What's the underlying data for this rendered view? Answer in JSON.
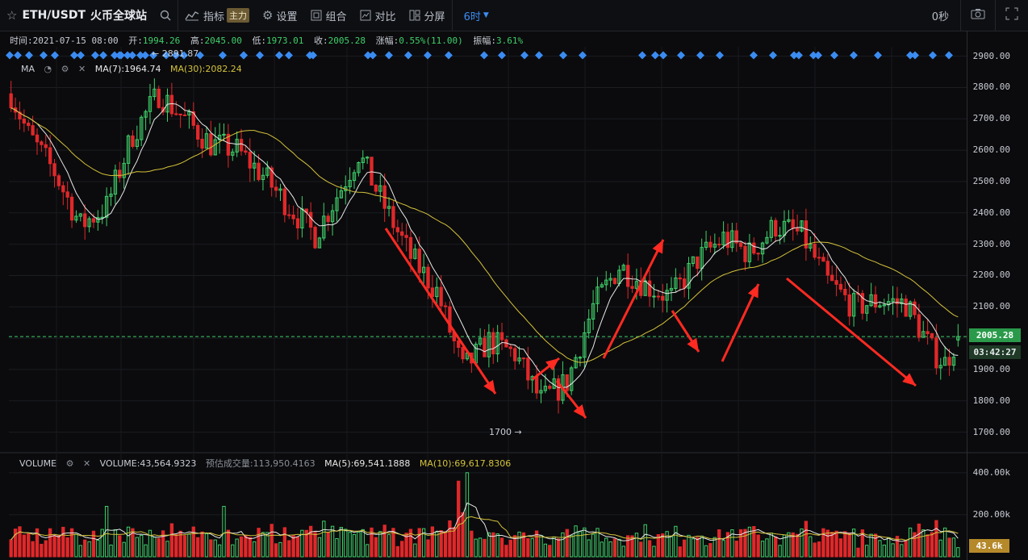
{
  "toolbar": {
    "pair": "ETH/USDT",
    "exchange": "火币全球站",
    "indicator": "指标",
    "indicator_badge": "主力",
    "settings": "设置",
    "combo": "组合",
    "compare": "对比",
    "split": "分屏",
    "interval": "6时",
    "countdown_right": "0秒"
  },
  "info": {
    "time_label": "时间:",
    "time": "2021-07-15 08:00",
    "open_label": "开:",
    "open": "1994.26",
    "high_label": "高:",
    "high": "2045.00",
    "low_label": "低:",
    "low": "1973.01",
    "close_label": "收:",
    "close": "2005.28",
    "change_label": "涨幅:",
    "change": "0.55%(11.00)",
    "amp_label": "振幅:",
    "amp": "3.61%"
  },
  "ma_legend": {
    "name": "MA",
    "ma7": "MA(7):1964.74",
    "ma30": "MA(30):2082.24"
  },
  "vol_legend": {
    "name": "VOLUME",
    "volume": "VOLUME:43,564.9323",
    "est_label": "预估成交量:",
    "est": "113,950.4163",
    "ma5": "MA(5):69,541.1888",
    "ma10": "MA(10):69,617.8306"
  },
  "annotations": {
    "high_marker": "← 2891.87",
    "low_marker": "1700 →"
  },
  "price_axis": [
    "2900.00",
    "2800.00",
    "2700.00",
    "2600.00",
    "2500.00",
    "2400.00",
    "2300.00",
    "2200.00",
    "2100.00",
    "2000.00",
    "1900.00",
    "1800.00",
    "1700.00"
  ],
  "volume_axis": [
    "400.00k",
    "200.00k"
  ],
  "current_price": "2005.28",
  "countdown": "03:42:27",
  "current_volume": "43.6k",
  "colors": {
    "up": "#3fd06a",
    "down": "#e0282a",
    "ma7": "#e8e8e8",
    "ma30": "#d4c23a",
    "accent": "#3b8cf2"
  },
  "chart_data": {
    "type": "candlestick",
    "price_range": [
      1650,
      2930
    ],
    "volume_range": [
      0,
      430000
    ],
    "ma_series": [
      "MA(7)",
      "MA(30)"
    ],
    "anchors": [
      {
        "i": 0,
        "p": 2780
      },
      {
        "i": 4,
        "p": 2650
      },
      {
        "i": 10,
        "p": 2530
      },
      {
        "i": 16,
        "p": 2360
      },
      {
        "i": 22,
        "p": 2420
      },
      {
        "i": 28,
        "p": 2650
      },
      {
        "i": 34,
        "p": 2780
      },
      {
        "i": 40,
        "p": 2700
      },
      {
        "i": 46,
        "p": 2620
      },
      {
        "i": 52,
        "p": 2600
      },
      {
        "i": 58,
        "p": 2520
      },
      {
        "i": 64,
        "p": 2420
      },
      {
        "i": 70,
        "p": 2330
      },
      {
        "i": 76,
        "p": 2480
      },
      {
        "i": 80,
        "p": 2590
      },
      {
        "i": 86,
        "p": 2420
      },
      {
        "i": 92,
        "p": 2260
      },
      {
        "i": 98,
        "p": 2150
      },
      {
        "i": 104,
        "p": 1900
      },
      {
        "i": 110,
        "p": 1990
      },
      {
        "i": 116,
        "p": 1950
      },
      {
        "i": 122,
        "p": 1800
      },
      {
        "i": 128,
        "p": 1860
      },
      {
        "i": 134,
        "p": 2100
      },
      {
        "i": 140,
        "p": 2230
      },
      {
        "i": 146,
        "p": 2170
      },
      {
        "i": 152,
        "p": 2130
      },
      {
        "i": 158,
        "p": 2250
      },
      {
        "i": 164,
        "p": 2320
      },
      {
        "i": 170,
        "p": 2270
      },
      {
        "i": 176,
        "p": 2360
      },
      {
        "i": 182,
        "p": 2330
      },
      {
        "i": 188,
        "p": 2180
      },
      {
        "i": 194,
        "p": 2100
      },
      {
        "i": 200,
        "p": 2120
      },
      {
        "i": 206,
        "p": 2110
      },
      {
        "i": 212,
        "p": 1960
      },
      {
        "i": 215,
        "p": 1920
      },
      {
        "i": 218,
        "p": 2005
      }
    ],
    "candles": 219
  }
}
